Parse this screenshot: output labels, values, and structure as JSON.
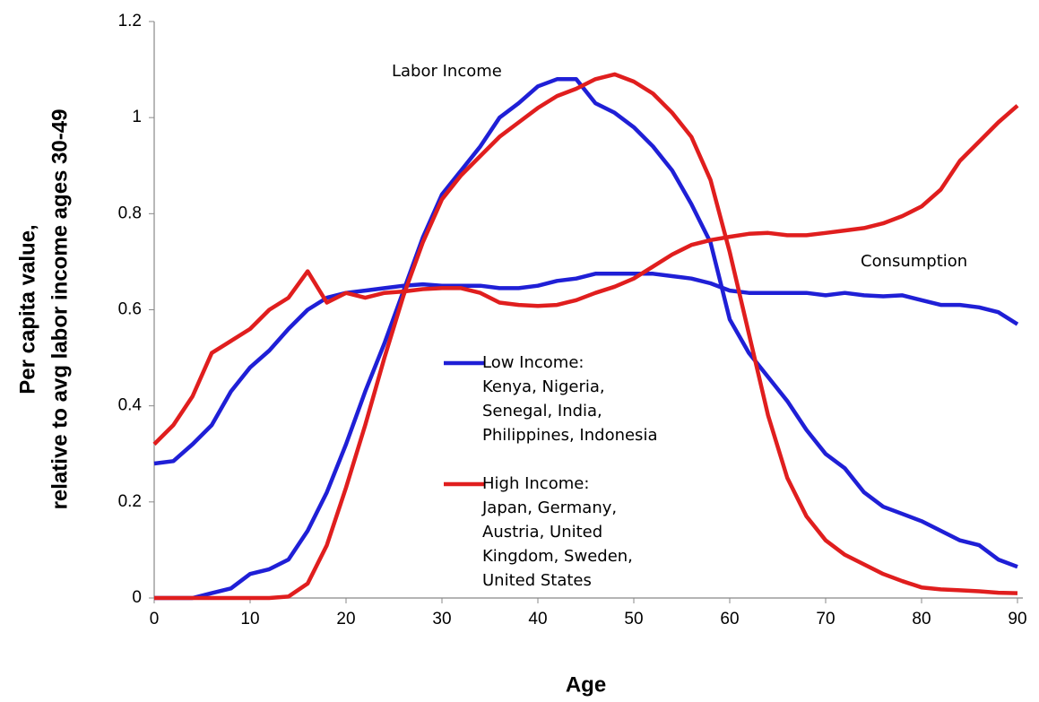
{
  "chart_data": {
    "type": "line",
    "xlabel": "Age",
    "ylabel": [
      "Per capita value,",
      "relative to avg labor income ages 30-49"
    ],
    "x": [
      0,
      2,
      4,
      6,
      8,
      10,
      12,
      14,
      16,
      18,
      20,
      22,
      24,
      26,
      28,
      30,
      32,
      34,
      36,
      38,
      40,
      42,
      44,
      46,
      48,
      50,
      52,
      54,
      56,
      58,
      60,
      62,
      64,
      66,
      68,
      70,
      72,
      74,
      76,
      78,
      80,
      82,
      84,
      86,
      88,
      90
    ],
    "series": [
      {
        "name": [
          "Low Income:",
          "Kenya, Nigeria,",
          "Senegal, India,",
          "Philippines, Indonesia"
        ],
        "color": "#1f1fd6",
        "labor_income": [
          0,
          0,
          0,
          0.01,
          0.02,
          0.05,
          0.06,
          0.08,
          0.14,
          0.22,
          0.32,
          0.43,
          0.53,
          0.64,
          0.75,
          0.84,
          0.89,
          0.94,
          1.0,
          1.03,
          1.065,
          1.08,
          1.08,
          1.03,
          1.01,
          0.98,
          0.94,
          0.89,
          0.82,
          0.74,
          0.58,
          0.51,
          0.46,
          0.41,
          0.35,
          0.3,
          0.27,
          0.22,
          0.19,
          0.175,
          0.16,
          0.14,
          0.12,
          0.11,
          0.08,
          0.065
        ],
        "consumption": [
          0.28,
          0.285,
          0.32,
          0.36,
          0.43,
          0.48,
          0.515,
          0.56,
          0.6,
          0.625,
          0.635,
          0.64,
          0.645,
          0.65,
          0.653,
          0.65,
          0.65,
          0.65,
          0.645,
          0.645,
          0.65,
          0.66,
          0.665,
          0.675,
          0.675,
          0.675,
          0.675,
          0.67,
          0.665,
          0.655,
          0.64,
          0.635,
          0.635,
          0.635,
          0.635,
          0.63,
          0.635,
          0.63,
          0.628,
          0.63,
          0.62,
          0.61,
          0.61,
          0.605,
          0.595,
          0.57
        ]
      },
      {
        "name": [
          "High Income:",
          "Japan, Germany,",
          "Austria, United",
          "Kingdom, Sweden,",
          "United States"
        ],
        "color": "#e01e1e",
        "labor_income": [
          0,
          0,
          0,
          0,
          0,
          0,
          0,
          0.003,
          0.03,
          0.11,
          0.23,
          0.36,
          0.5,
          0.63,
          0.74,
          0.83,
          0.88,
          0.92,
          0.96,
          0.99,
          1.02,
          1.045,
          1.06,
          1.08,
          1.09,
          1.075,
          1.05,
          1.01,
          0.96,
          0.87,
          0.72,
          0.55,
          0.38,
          0.25,
          0.17,
          0.12,
          0.09,
          0.07,
          0.05,
          0.035,
          0.022,
          0.018,
          0.016,
          0.014,
          0.011,
          0.01
        ],
        "consumption": [
          0.32,
          0.36,
          0.42,
          0.51,
          0.535,
          0.56,
          0.6,
          0.625,
          0.68,
          0.615,
          0.635,
          0.625,
          0.635,
          0.638,
          0.643,
          0.645,
          0.645,
          0.635,
          0.615,
          0.61,
          0.608,
          0.61,
          0.62,
          0.635,
          0.648,
          0.665,
          0.69,
          0.715,
          0.735,
          0.745,
          0.752,
          0.758,
          0.76,
          0.755,
          0.755,
          0.76,
          0.765,
          0.77,
          0.78,
          0.795,
          0.815,
          0.85,
          0.91,
          0.95,
          0.99,
          1.025
        ]
      }
    ],
    "annotations": [
      "Labor Income",
      "Consumption"
    ],
    "xlim": [
      0,
      90
    ],
    "xticks": [
      0,
      10,
      20,
      30,
      40,
      50,
      60,
      70,
      80,
      90
    ],
    "ylim": [
      0,
      1.2
    ],
    "yticks": [
      0,
      0.2,
      0.4,
      0.6,
      0.8,
      1,
      1.2
    ],
    "grid": false,
    "legend": "center"
  }
}
